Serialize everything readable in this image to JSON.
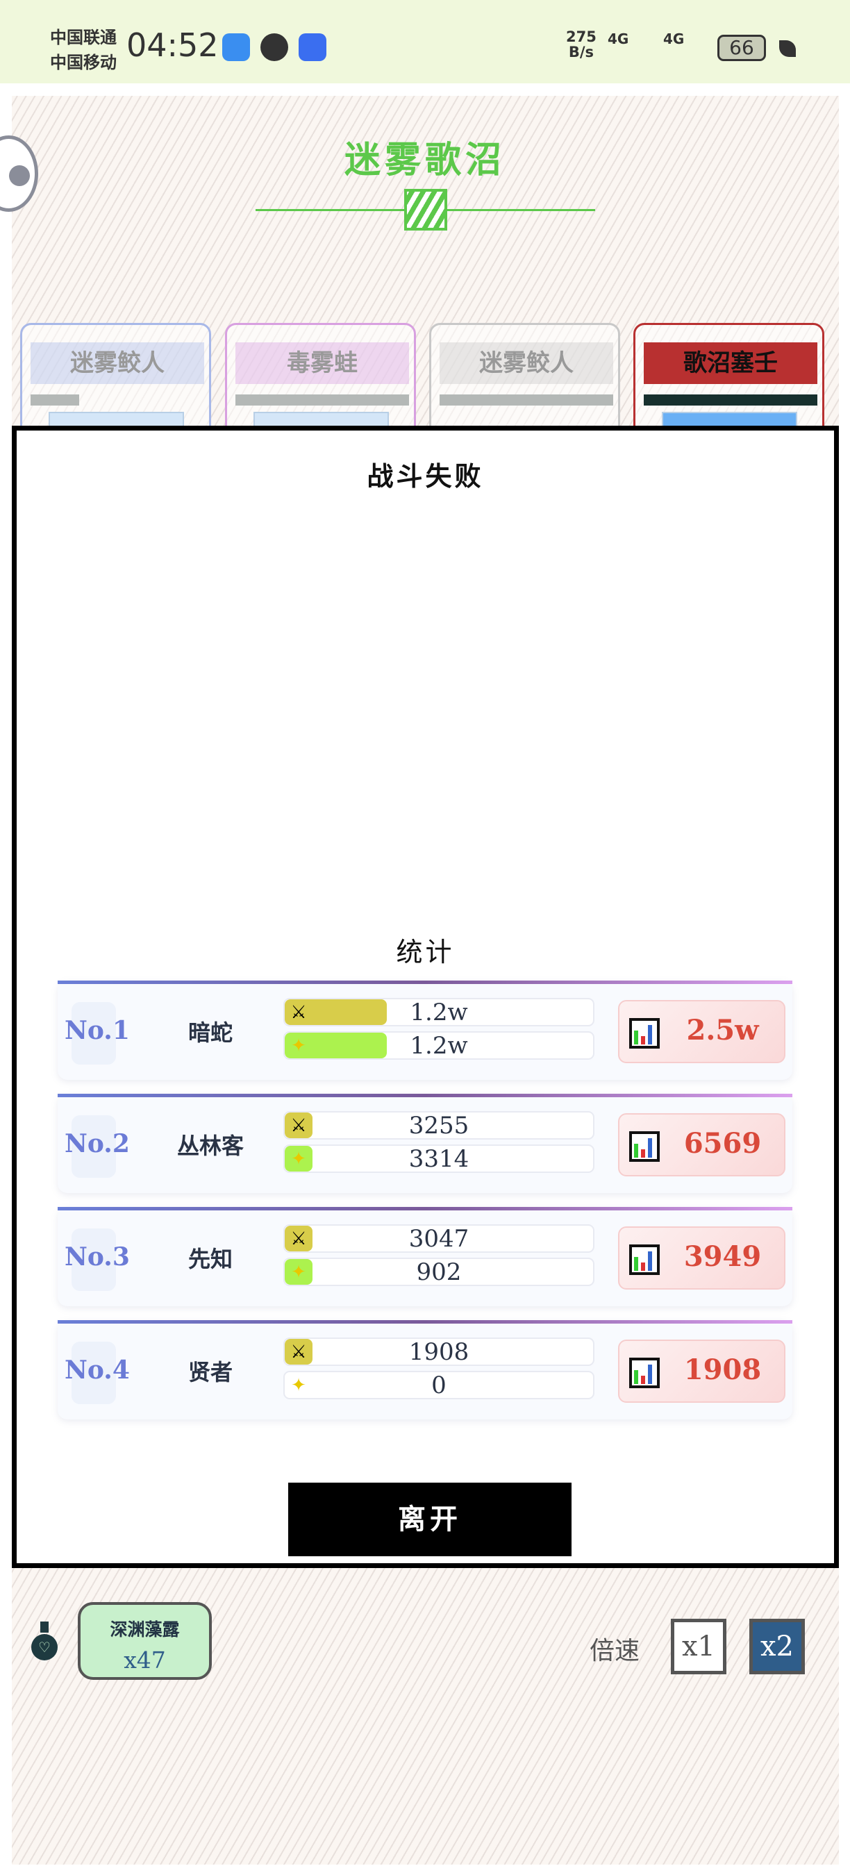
{
  "status_bar": {
    "carrier1": "中国联通",
    "carrier2": "中国移动",
    "time": "04:52",
    "net_speed": "275",
    "net_unit": "B/s",
    "sig1": "4G",
    "sig2": "4G",
    "battery": "66"
  },
  "stage": {
    "title": "迷雾歌沼",
    "accent": "#5cc84a"
  },
  "enemy_cards": [
    {
      "name": "迷雾鲛人",
      "color": "#a8b8e8",
      "state": "defeated"
    },
    {
      "name": "毒雾蛙",
      "color": "#d8a0e0",
      "state": "defeated"
    },
    {
      "name": "迷雾鲛人",
      "color": "#c8c8c8",
      "state": "defeated"
    },
    {
      "name": "歌沼塞壬",
      "color": "#b83030",
      "state": "active"
    }
  ],
  "modal": {
    "title": "战斗失败",
    "stats_title": "统计",
    "leave_label": "离开",
    "rows": [
      {
        "rank": "No.1",
        "name": "暗蛇",
        "damage": "1.2w",
        "heal": "1.2w",
        "damage_fill": 0.33,
        "heal_fill": 0.33,
        "total": "2.5w"
      },
      {
        "rank": "No.2",
        "name": "丛林客",
        "damage": "3255",
        "heal": "3314",
        "damage_fill": 0.09,
        "heal_fill": 0.09,
        "total": "6569"
      },
      {
        "rank": "No.3",
        "name": "先知",
        "damage": "3047",
        "heal": "902",
        "damage_fill": 0.09,
        "heal_fill": 0.09,
        "total": "3949"
      },
      {
        "rank": "No.4",
        "name": "贤者",
        "damage": "1908",
        "heal": "0",
        "damage_fill": 0.09,
        "heal_fill": 0,
        "total": "1908"
      }
    ]
  },
  "bottom": {
    "item_name": "深渊藻露",
    "item_count": "x47",
    "speed_label": "倍速",
    "speed_options": [
      "x1",
      "x2"
    ],
    "speed_selected": "x2"
  }
}
